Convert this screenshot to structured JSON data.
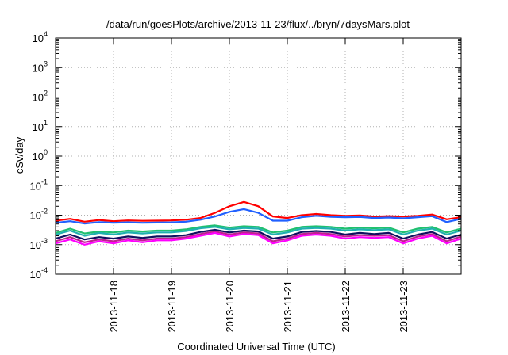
{
  "chart_data": {
    "type": "line",
    "title": "/data/run/goesPlots/archive/2013-11-23/flux/../bryn/7daysMars.plot",
    "xlabel": "Coordinated Universal Time (UTC)",
    "ylabel": "cSv/day",
    "yscale": "log",
    "ylim": [
      0.0001,
      10000
    ],
    "xlim": [
      "2013-11-17 00:00",
      "2013-11-24 00:00"
    ],
    "grid": true,
    "legend": "none",
    "yticks": [
      {
        "base": "10",
        "exp": "-4"
      },
      {
        "base": "10",
        "exp": "-3"
      },
      {
        "base": "10",
        "exp": "-2"
      },
      {
        "base": "10",
        "exp": "-1"
      },
      {
        "base": "10",
        "exp": "0"
      },
      {
        "base": "10",
        "exp": "1"
      },
      {
        "base": "10",
        "exp": "2"
      },
      {
        "base": "10",
        "exp": "3"
      },
      {
        "base": "10",
        "exp": "4"
      }
    ],
    "xticks": [
      {
        "date": "2013-11-18",
        "label": "2013-11-18"
      },
      {
        "date": "2013-11-19",
        "label": "2013-11-19"
      },
      {
        "date": "2013-11-20",
        "label": "2013-11-20"
      },
      {
        "date": "2013-11-21",
        "label": "2013-11-21"
      },
      {
        "date": "2013-11-22",
        "label": "2013-11-22"
      },
      {
        "date": "2013-11-23",
        "label": "2013-11-23"
      }
    ],
    "x": [
      "2013-11-17 00:00",
      "2013-11-17 06:00",
      "2013-11-17 12:00",
      "2013-11-17 18:00",
      "2013-11-18 00:00",
      "2013-11-18 06:00",
      "2013-11-18 12:00",
      "2013-11-18 18:00",
      "2013-11-19 00:00",
      "2013-11-19 06:00",
      "2013-11-19 12:00",
      "2013-11-19 18:00",
      "2013-11-20 00:00",
      "2013-11-20 06:00",
      "2013-11-20 12:00",
      "2013-11-20 18:00",
      "2013-11-21 00:00",
      "2013-11-21 06:00",
      "2013-11-21 12:00",
      "2013-11-21 18:00",
      "2013-11-22 00:00",
      "2013-11-22 06:00",
      "2013-11-22 12:00",
      "2013-11-22 18:00",
      "2013-11-23 00:00",
      "2013-11-23 06:00",
      "2013-11-23 12:00",
      "2013-11-23 18:00",
      "2013-11-24 00:00"
    ],
    "series": [
      {
        "color": "#ff0000",
        "values": [
          0.0065,
          0.0075,
          0.006,
          0.0068,
          0.0062,
          0.0066,
          0.0064,
          0.0065,
          0.0066,
          0.007,
          0.008,
          0.012,
          0.02,
          0.028,
          0.02,
          0.009,
          0.008,
          0.01,
          0.011,
          0.01,
          0.0095,
          0.0098,
          0.009,
          0.0093,
          0.009,
          0.0095,
          0.0105,
          0.0072,
          0.0085
        ]
      },
      {
        "color": "#2060ff",
        "values": [
          0.0055,
          0.0062,
          0.0052,
          0.0058,
          0.0055,
          0.0057,
          0.0055,
          0.0056,
          0.0057,
          0.006,
          0.007,
          0.009,
          0.013,
          0.016,
          0.012,
          0.0065,
          0.0065,
          0.0085,
          0.0095,
          0.0088,
          0.0085,
          0.0087,
          0.008,
          0.0083,
          0.0078,
          0.0085,
          0.0092,
          0.0058,
          0.0075
        ]
      },
      {
        "color": "#20c070",
        "values": [
          0.0025,
          0.0035,
          0.0024,
          0.0028,
          0.0026,
          0.003,
          0.0028,
          0.003,
          0.003,
          0.0033,
          0.004,
          0.0045,
          0.0038,
          0.0042,
          0.004,
          0.0026,
          0.003,
          0.004,
          0.0042,
          0.004,
          0.0035,
          0.0038,
          0.0036,
          0.0038,
          0.0026,
          0.0035,
          0.004,
          0.0026,
          0.0035
        ]
      },
      {
        "color": "#20b0b0",
        "values": [
          0.0022,
          0.003,
          0.002,
          0.0025,
          0.0022,
          0.0026,
          0.0024,
          0.0026,
          0.0026,
          0.0029,
          0.0036,
          0.004,
          0.0033,
          0.0037,
          0.0035,
          0.0022,
          0.0026,
          0.0035,
          0.0037,
          0.0035,
          0.003,
          0.0033,
          0.0031,
          0.0033,
          0.0022,
          0.003,
          0.0035,
          0.0022,
          0.003
        ]
      },
      {
        "color": "#101060",
        "values": [
          0.0016,
          0.0022,
          0.0015,
          0.0018,
          0.0016,
          0.0019,
          0.0017,
          0.0019,
          0.0019,
          0.0021,
          0.0027,
          0.0032,
          0.0026,
          0.003,
          0.0028,
          0.0016,
          0.0019,
          0.0027,
          0.0029,
          0.0027,
          0.0022,
          0.0025,
          0.0023,
          0.0025,
          0.0016,
          0.0022,
          0.0027,
          0.0016,
          0.0022
        ]
      },
      {
        "color": "#c02090",
        "values": [
          0.0013,
          0.0018,
          0.0012,
          0.0015,
          0.0013,
          0.0016,
          0.0014,
          0.0016,
          0.0016,
          0.0018,
          0.0023,
          0.0028,
          0.0022,
          0.0026,
          0.0024,
          0.0013,
          0.0016,
          0.0023,
          0.0025,
          0.0023,
          0.0019,
          0.0021,
          0.002,
          0.0021,
          0.0013,
          0.0019,
          0.0023,
          0.0013,
          0.0019
        ]
      },
      {
        "color": "#ff00ff",
        "values": [
          0.0011,
          0.0015,
          0.001,
          0.0013,
          0.0011,
          0.0014,
          0.0012,
          0.0014,
          0.0014,
          0.0016,
          0.002,
          0.0025,
          0.0019,
          0.0023,
          0.0021,
          0.0011,
          0.0014,
          0.002,
          0.0022,
          0.002,
          0.0016,
          0.0018,
          0.0017,
          0.0018,
          0.0011,
          0.0016,
          0.002,
          0.0011,
          0.0016
        ]
      }
    ]
  }
}
